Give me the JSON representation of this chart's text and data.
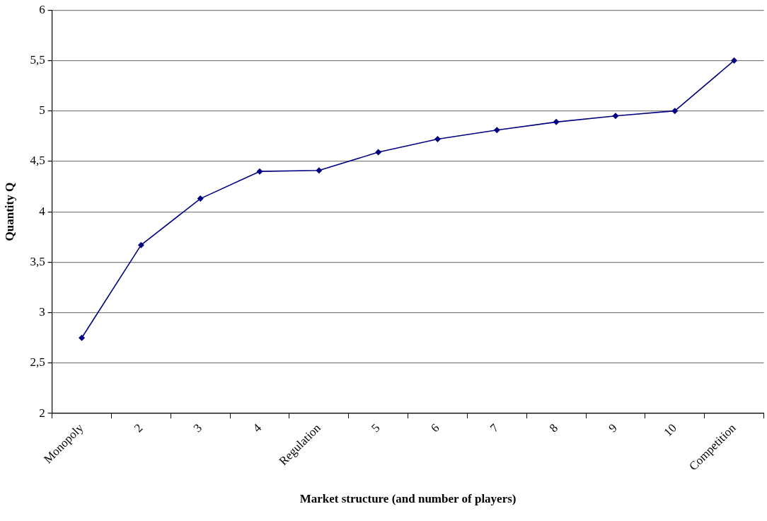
{
  "chart_data": {
    "type": "line",
    "xlabel": "Market structure (and number of players)",
    "ylabel": "Quantity Q",
    "categories": [
      "Monopoly",
      "2",
      "3",
      "4",
      "Regulation",
      "5",
      "6",
      "7",
      "8",
      "9",
      "10",
      "Competition"
    ],
    "values": [
      2.75,
      3.67,
      4.13,
      4.4,
      4.41,
      4.59,
      4.72,
      4.81,
      4.89,
      4.95,
      5.0,
      5.5
    ],
    "color": "#000080",
    "ylim": [
      2,
      6
    ],
    "yticks": [
      2,
      {
        "value": 2.5,
        "label": "2,5"
      },
      3,
      {
        "value": 3.5,
        "label": "3,5"
      },
      4,
      {
        "value": 4.5,
        "label": "4,5"
      },
      5,
      {
        "value": 5.5,
        "label": "5,5"
      },
      6
    ],
    "grid": "y",
    "marker": "diamond",
    "line_style": "solid"
  }
}
